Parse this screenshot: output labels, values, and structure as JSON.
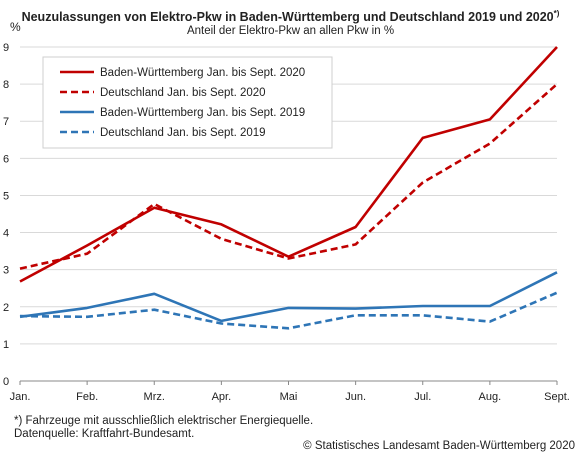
{
  "chart_data": {
    "type": "line",
    "title": "Neuzulassungen von Elektro-Pkw in Baden-Württemberg und Deutschland 2019 und 2020",
    "title_marker": "*)",
    "subtitle": "Anteil der Elektro-Pkw an allen Pkw in %",
    "ylabel": "%",
    "xlabel": "",
    "categories": [
      "Jan.",
      "Feb.",
      "Mrz.",
      "Apr.",
      "Mai",
      "Jun.",
      "Jul.",
      "Aug.",
      "Sept."
    ],
    "ylim": [
      0,
      9
    ],
    "yticks": [
      0,
      1,
      2,
      3,
      4,
      5,
      6,
      7,
      8,
      9
    ],
    "grid": true,
    "legend_position": "top-left",
    "series": [
      {
        "name": "Baden-Württemberg Jan. bis Sept. 2020",
        "color": "#c00000",
        "dashed": false,
        "values": [
          2.68,
          3.65,
          4.67,
          4.22,
          3.35,
          4.15,
          6.55,
          7.05,
          9.0
        ]
      },
      {
        "name": "Deutschland Jan. bis Sept. 2020",
        "color": "#c00000",
        "dashed": true,
        "values": [
          3.03,
          3.43,
          4.77,
          3.83,
          3.3,
          3.68,
          5.35,
          6.4,
          8.0
        ]
      },
      {
        "name": "Baden-Württemberg Jan. bis Sept. 2019",
        "color": "#2e75b6",
        "dashed": false,
        "values": [
          1.73,
          1.97,
          2.35,
          1.62,
          1.97,
          1.95,
          2.02,
          2.02,
          2.93
        ]
      },
      {
        "name": "Deutschland Jan. bis Sept. 2019",
        "color": "#2e75b6",
        "dashed": true,
        "values": [
          1.75,
          1.73,
          1.92,
          1.55,
          1.42,
          1.77,
          1.77,
          1.6,
          2.38
        ]
      }
    ]
  },
  "footnote": {
    "line1": "*) Fahrzeuge mit ausschließlich elektrischer Energiequelle.",
    "line2": "Datenquelle: Kraftfahrt-Bundesamt."
  },
  "copyright": "© Statistisches Landesamt Baden-Württemberg 2020"
}
